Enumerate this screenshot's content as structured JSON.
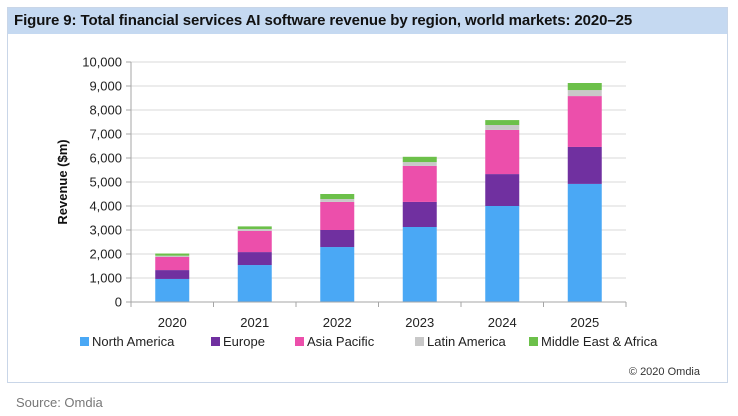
{
  "figure": {
    "title": "Figure 9: Total financial services AI software revenue by region, world markets: 2020–25",
    "copyright": "© 2020 Omdia",
    "source": "Source: Omdia"
  },
  "chart_data": {
    "type": "bar",
    "stacked": true,
    "title": "Figure 9: Total financial services AI software revenue by region, world markets: 2020–25",
    "xlabel": "",
    "ylabel": "Revenue ($m)",
    "ylim": [
      0,
      10000
    ],
    "yticks": [
      0,
      1000,
      2000,
      3000,
      4000,
      5000,
      6000,
      7000,
      8000,
      9000,
      10000
    ],
    "ytick_labels": [
      "0",
      "1,000",
      "2,000",
      "3,000",
      "4,000",
      "5,000",
      "6,000",
      "7,000",
      "8,000",
      "9,000",
      "10,000"
    ],
    "grid": true,
    "legend_position": "bottom",
    "categories": [
      "2020",
      "2021",
      "2022",
      "2023",
      "2024",
      "2025"
    ],
    "series": [
      {
        "name": "North America",
        "color": "#4aa8f5",
        "values": [
          960,
          1540,
          2290,
          3125,
          4000,
          4920
        ]
      },
      {
        "name": "Europe",
        "color": "#7030a0",
        "values": [
          370,
          540,
          710,
          1045,
          1330,
          1540
        ]
      },
      {
        "name": "Asia Pacific",
        "color": "#ec4fab",
        "values": [
          545,
          880,
          1170,
          1500,
          1840,
          2120
        ]
      },
      {
        "name": "Latin America",
        "color": "#c8c8c8",
        "values": [
          55,
          80,
          120,
          160,
          205,
          250
        ]
      },
      {
        "name": "Middle East & Africa",
        "color": "#6cc04a",
        "values": [
          90,
          110,
          210,
          220,
          205,
          295
        ]
      }
    ]
  }
}
